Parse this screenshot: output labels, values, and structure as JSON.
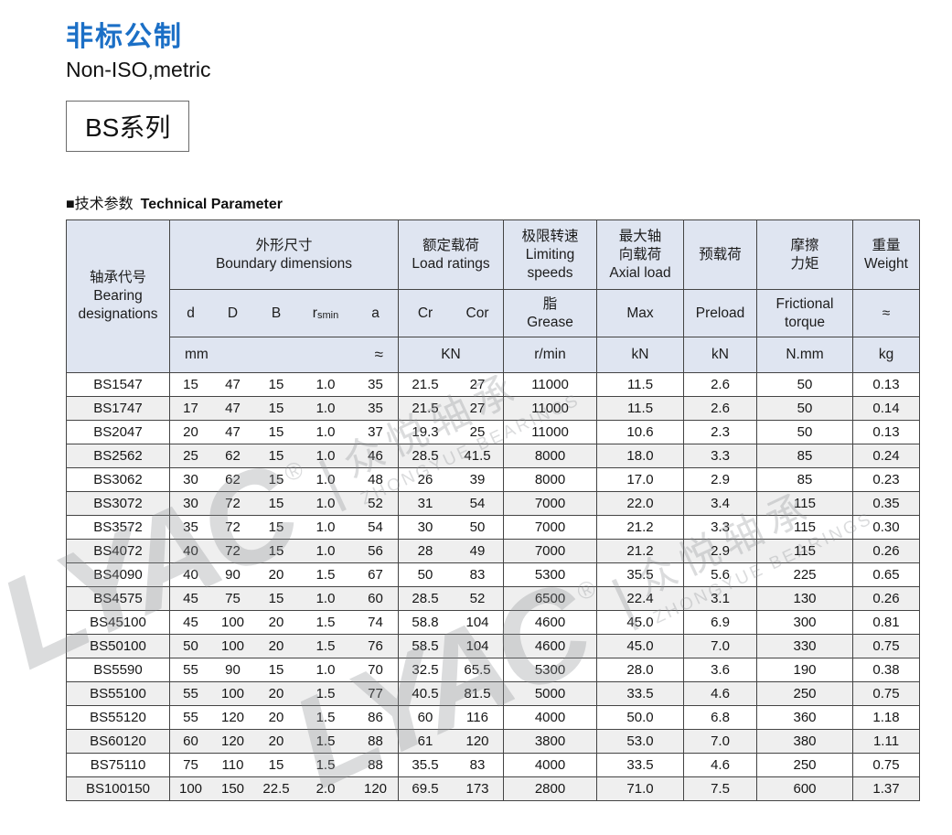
{
  "page": {
    "title_zh": "非标公制",
    "title_en": "Non-ISO,metric",
    "series_badge": "BS系列",
    "section_zh": "■技术参数",
    "section_en": "Technical Parameter"
  },
  "colors": {
    "title_blue": "#1b6fc6",
    "header_bg": "#dfe5f1",
    "alt_row_bg": "#efefef",
    "border": "#444444"
  },
  "watermark": {
    "logo": "LYAC",
    "reg": "®",
    "sep": "|",
    "zh": "众悦轴承",
    "en": "ZHONGYUE BEARINGS"
  },
  "table": {
    "head": {
      "designation": "轴承代号\nBearing\ndesignations",
      "boundary": "外形尺寸\nBoundary dimensions",
      "load": "额定载荷\nLoad ratings",
      "speed": "极限转速\nLimiting\nspeeds",
      "axial": "最大轴\n向载荷\nAxial load",
      "preload": "预载荷",
      "friction": "摩擦\n力矩",
      "weight": "重量\nWeight"
    },
    "sub": {
      "d": "d",
      "D": "D",
      "B": "B",
      "r": "r",
      "rsub": "smin",
      "a": "a",
      "cr": "Cr",
      "cor": "Cor",
      "grease": "脂\nGrease",
      "max": "Max",
      "preload": "Preload",
      "friction": "Frictional\ntorque",
      "weight_approx": "≈"
    },
    "units": {
      "mm": "mm",
      "mm_approx": "≈",
      "load": "KN",
      "speed": "r/min",
      "axial": "kN",
      "preload": "kN",
      "friction": "N.mm",
      "weight": "kg"
    },
    "rows": [
      [
        "BS1547",
        "15",
        "47",
        "15",
        "1.0",
        "35",
        "21.5",
        "27",
        "11000",
        "11.5",
        "2.6",
        "50",
        "0.13"
      ],
      [
        "BS1747",
        "17",
        "47",
        "15",
        "1.0",
        "35",
        "21.5",
        "27",
        "11000",
        "11.5",
        "2.6",
        "50",
        "0.14"
      ],
      [
        "BS2047",
        "20",
        "47",
        "15",
        "1.0",
        "37",
        "19.3",
        "25",
        "11000",
        "10.6",
        "2.3",
        "50",
        "0.13"
      ],
      [
        "BS2562",
        "25",
        "62",
        "15",
        "1.0",
        "46",
        "28.5",
        "41.5",
        "8000",
        "18.0",
        "3.3",
        "85",
        "0.24"
      ],
      [
        "BS3062",
        "30",
        "62",
        "15",
        "1.0",
        "48",
        "26",
        "39",
        "8000",
        "17.0",
        "2.9",
        "85",
        "0.23"
      ],
      [
        "BS3072",
        "30",
        "72",
        "15",
        "1.0",
        "52",
        "31",
        "54",
        "7000",
        "22.0",
        "3.4",
        "115",
        "0.35"
      ],
      [
        "BS3572",
        "35",
        "72",
        "15",
        "1.0",
        "54",
        "30",
        "50",
        "7000",
        "21.2",
        "3.3",
        "115",
        "0.30"
      ],
      [
        "BS4072",
        "40",
        "72",
        "15",
        "1.0",
        "56",
        "28",
        "49",
        "7000",
        "21.2",
        "2.9",
        "115",
        "0.26"
      ],
      [
        "BS4090",
        "40",
        "90",
        "20",
        "1.5",
        "67",
        "50",
        "83",
        "5300",
        "35.5",
        "5.6",
        "225",
        "0.65"
      ],
      [
        "BS4575",
        "45",
        "75",
        "15",
        "1.0",
        "60",
        "28.5",
        "52",
        "6500",
        "22.4",
        "3.1",
        "130",
        "0.26"
      ],
      [
        "BS45100",
        "45",
        "100",
        "20",
        "1.5",
        "74",
        "58.8",
        "104",
        "4600",
        "45.0",
        "6.9",
        "300",
        "0.81"
      ],
      [
        "BS50100",
        "50",
        "100",
        "20",
        "1.5",
        "76",
        "58.5",
        "104",
        "4600",
        "45.0",
        "7.0",
        "330",
        "0.75"
      ],
      [
        "BS5590",
        "55",
        "90",
        "15",
        "1.0",
        "70",
        "32.5",
        "65.5",
        "5300",
        "28.0",
        "3.6",
        "190",
        "0.38"
      ],
      [
        "BS55100",
        "55",
        "100",
        "20",
        "1.5",
        "77",
        "40.5",
        "81.5",
        "5000",
        "33.5",
        "4.6",
        "250",
        "0.75"
      ],
      [
        "BS55120",
        "55",
        "120",
        "20",
        "1.5",
        "86",
        "60",
        "116",
        "4000",
        "50.0",
        "6.8",
        "360",
        "1.18"
      ],
      [
        "BS60120",
        "60",
        "120",
        "20",
        "1.5",
        "88",
        "61",
        "120",
        "3800",
        "53.0",
        "7.0",
        "380",
        "1.11"
      ],
      [
        "BS75110",
        "75",
        "110",
        "15",
        "1.5",
        "88",
        "35.5",
        "83",
        "4000",
        "33.5",
        "4.6",
        "250",
        "0.75"
      ],
      [
        "BS100150",
        "100",
        "150",
        "22.5",
        "2.0",
        "120",
        "69.5",
        "173",
        "2800",
        "71.0",
        "7.5",
        "600",
        "1.37"
      ]
    ]
  }
}
